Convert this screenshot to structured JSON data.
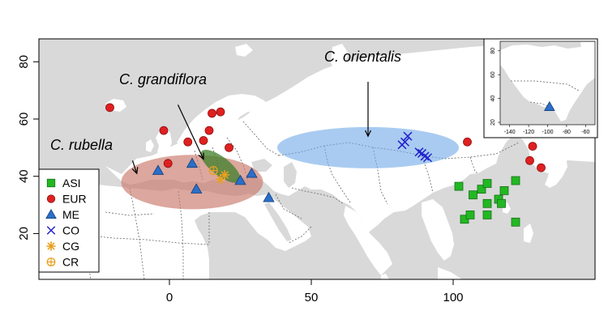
{
  "chart_data": {
    "type": "scatter",
    "map_type": "species distribution map",
    "xlabel": "",
    "ylabel": "",
    "xlim": [
      -46,
      150
    ],
    "ylim": [
      4,
      88
    ],
    "x_ticks": [
      0,
      50,
      100
    ],
    "y_ticks": [
      20,
      40,
      60,
      80
    ],
    "colors": {
      "sea": "#d9d9d9",
      "land": "#ffffff",
      "border": "#666666"
    },
    "regions": [
      {
        "name": "C. rubella",
        "label": "C. rubella",
        "center": [
          8,
          38
        ],
        "radius": [
          25,
          9.5
        ],
        "color": "#c9786a",
        "opacity": 0.65
      },
      {
        "name": "C. grandiflora",
        "label": "C. grandiflora",
        "center": [
          18,
          43.5
        ],
        "radius": [
          8.5,
          3.2
        ],
        "rotation": 38,
        "color": "#3d7f2a",
        "opacity": 0.75
      },
      {
        "name": "C. orientalis",
        "label": "C. orientalis",
        "center": [
          70,
          50
        ],
        "radius": [
          32,
          7.2
        ],
        "color": "#6fa8e8",
        "opacity": 0.6
      }
    ],
    "annotations": [
      {
        "text": "C. rubella",
        "text_pos": [
          -42,
          49
        ],
        "arrow_from": [
          -13,
          45.5
        ],
        "arrow_to": [
          -11.5,
          41
        ]
      },
      {
        "text": "C. grandiflora",
        "text_pos": [
          -18,
          69
        ],
        "arrow_from": [
          3,
          65
        ],
        "arrow_to": [
          12,
          46
        ]
      },
      {
        "text": "C. orientalis",
        "text_pos": [
          53,
          78
        ],
        "arrow_from": [
          70,
          73
        ],
        "arrow_to": [
          70,
          54
        ]
      }
    ],
    "legend": {
      "position": "bottom-left",
      "entries": [
        {
          "label": "ASI",
          "marker": "square",
          "color": "#22b822"
        },
        {
          "label": "EUR",
          "marker": "circle",
          "color": "#e02020"
        },
        {
          "label": "ME",
          "marker": "triangle",
          "color": "#2a6fc9"
        },
        {
          "label": "CO",
          "marker": "x",
          "color": "#2222cc"
        },
        {
          "label": "CG",
          "marker": "asterisk",
          "color": "#e8a020"
        },
        {
          "label": "CR",
          "marker": "circle-plus",
          "color": "#e8a020"
        }
      ]
    },
    "series": [
      {
        "name": "ASI",
        "points": [
          [
            102,
            36.5
          ],
          [
            104,
            25
          ],
          [
            107,
            33.5
          ],
          [
            106,
            26.5
          ],
          [
            110,
            35.5
          ],
          [
            112,
            37.5
          ],
          [
            112,
            30.5
          ],
          [
            112,
            26.5
          ],
          [
            116,
            32
          ],
          [
            117,
            30.5
          ],
          [
            118,
            35
          ],
          [
            122,
            38.5
          ],
          [
            122,
            24
          ]
        ]
      },
      {
        "name": "EUR",
        "points": [
          [
            -21,
            64
          ],
          [
            -2,
            56
          ],
          [
            -0.5,
            44.5
          ],
          [
            6.5,
            52
          ],
          [
            12,
            52.5
          ],
          [
            14,
            56
          ],
          [
            15,
            62
          ],
          [
            18,
            62.5
          ],
          [
            21,
            50
          ],
          [
            105,
            52
          ],
          [
            127,
            45.5
          ],
          [
            128,
            50.5
          ],
          [
            131,
            43
          ]
        ]
      },
      {
        "name": "ME",
        "points": [
          [
            -4,
            42
          ],
          [
            8,
            44.5
          ],
          [
            9.5,
            35.5
          ],
          [
            25,
            38.5
          ],
          [
            29,
            41
          ],
          [
            35,
            32.5
          ]
        ]
      },
      {
        "name": "CO",
        "points": [
          [
            82,
            51
          ],
          [
            83,
            52
          ],
          [
            84,
            54
          ],
          [
            88,
            48.5
          ],
          [
            89,
            48
          ],
          [
            90,
            47
          ],
          [
            91,
            46.5
          ]
        ]
      },
      {
        "name": "CG",
        "points": [
          [
            18,
            39
          ],
          [
            19.5,
            40.5
          ]
        ]
      },
      {
        "name": "CR",
        "points": [
          [
            15.5,
            42
          ]
        ]
      }
    ],
    "inset": {
      "type": "scatter",
      "xlim": [
        -150,
        -50
      ],
      "ylim": [
        18,
        88
      ],
      "x_ticks": [
        -140,
        -120,
        -100,
        -80,
        -60
      ],
      "y_ticks": [
        20,
        40,
        60,
        80
      ],
      "points": [
        {
          "series": "ME",
          "x": -98,
          "y": 33
        }
      ]
    }
  }
}
